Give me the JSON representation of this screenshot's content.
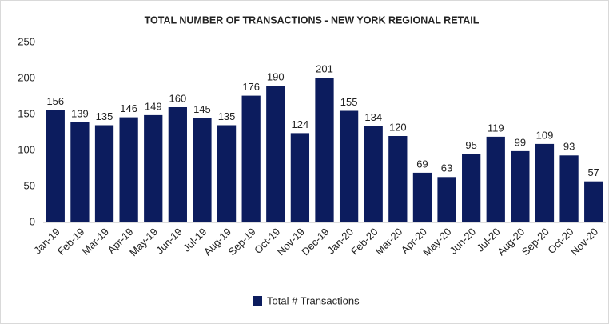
{
  "chart_data": {
    "type": "bar",
    "title": "TOTAL NUMBER OF TRANSACTIONS - NEW YORK REGIONAL RETAIL",
    "categories": [
      "Jan-19",
      "Feb-19",
      "Mar-19",
      "Apr-19",
      "May-19",
      "Jun-19",
      "Jul-19",
      "Aug-19",
      "Sep-19",
      "Oct-19",
      "Nov-19",
      "Dec-19",
      "Jan-20",
      "Feb-20",
      "Mar-20",
      "Apr-20",
      "May-20",
      "Jun-20",
      "Jul-20",
      "Aug-20",
      "Sep-20",
      "Oct-20",
      "Nov-20"
    ],
    "series": [
      {
        "name": "Total # Transactions",
        "color": "#0c1c5e",
        "values": [
          156,
          139,
          135,
          146,
          149,
          160,
          145,
          135,
          176,
          190,
          124,
          201,
          155,
          134,
          120,
          69,
          63,
          95,
          119,
          99,
          109,
          93,
          57
        ]
      }
    ],
    "ylim": [
      0,
      250
    ],
    "yticks": [
      0,
      50,
      100,
      150,
      200,
      250
    ],
    "grid": false,
    "legend": "bottom"
  }
}
